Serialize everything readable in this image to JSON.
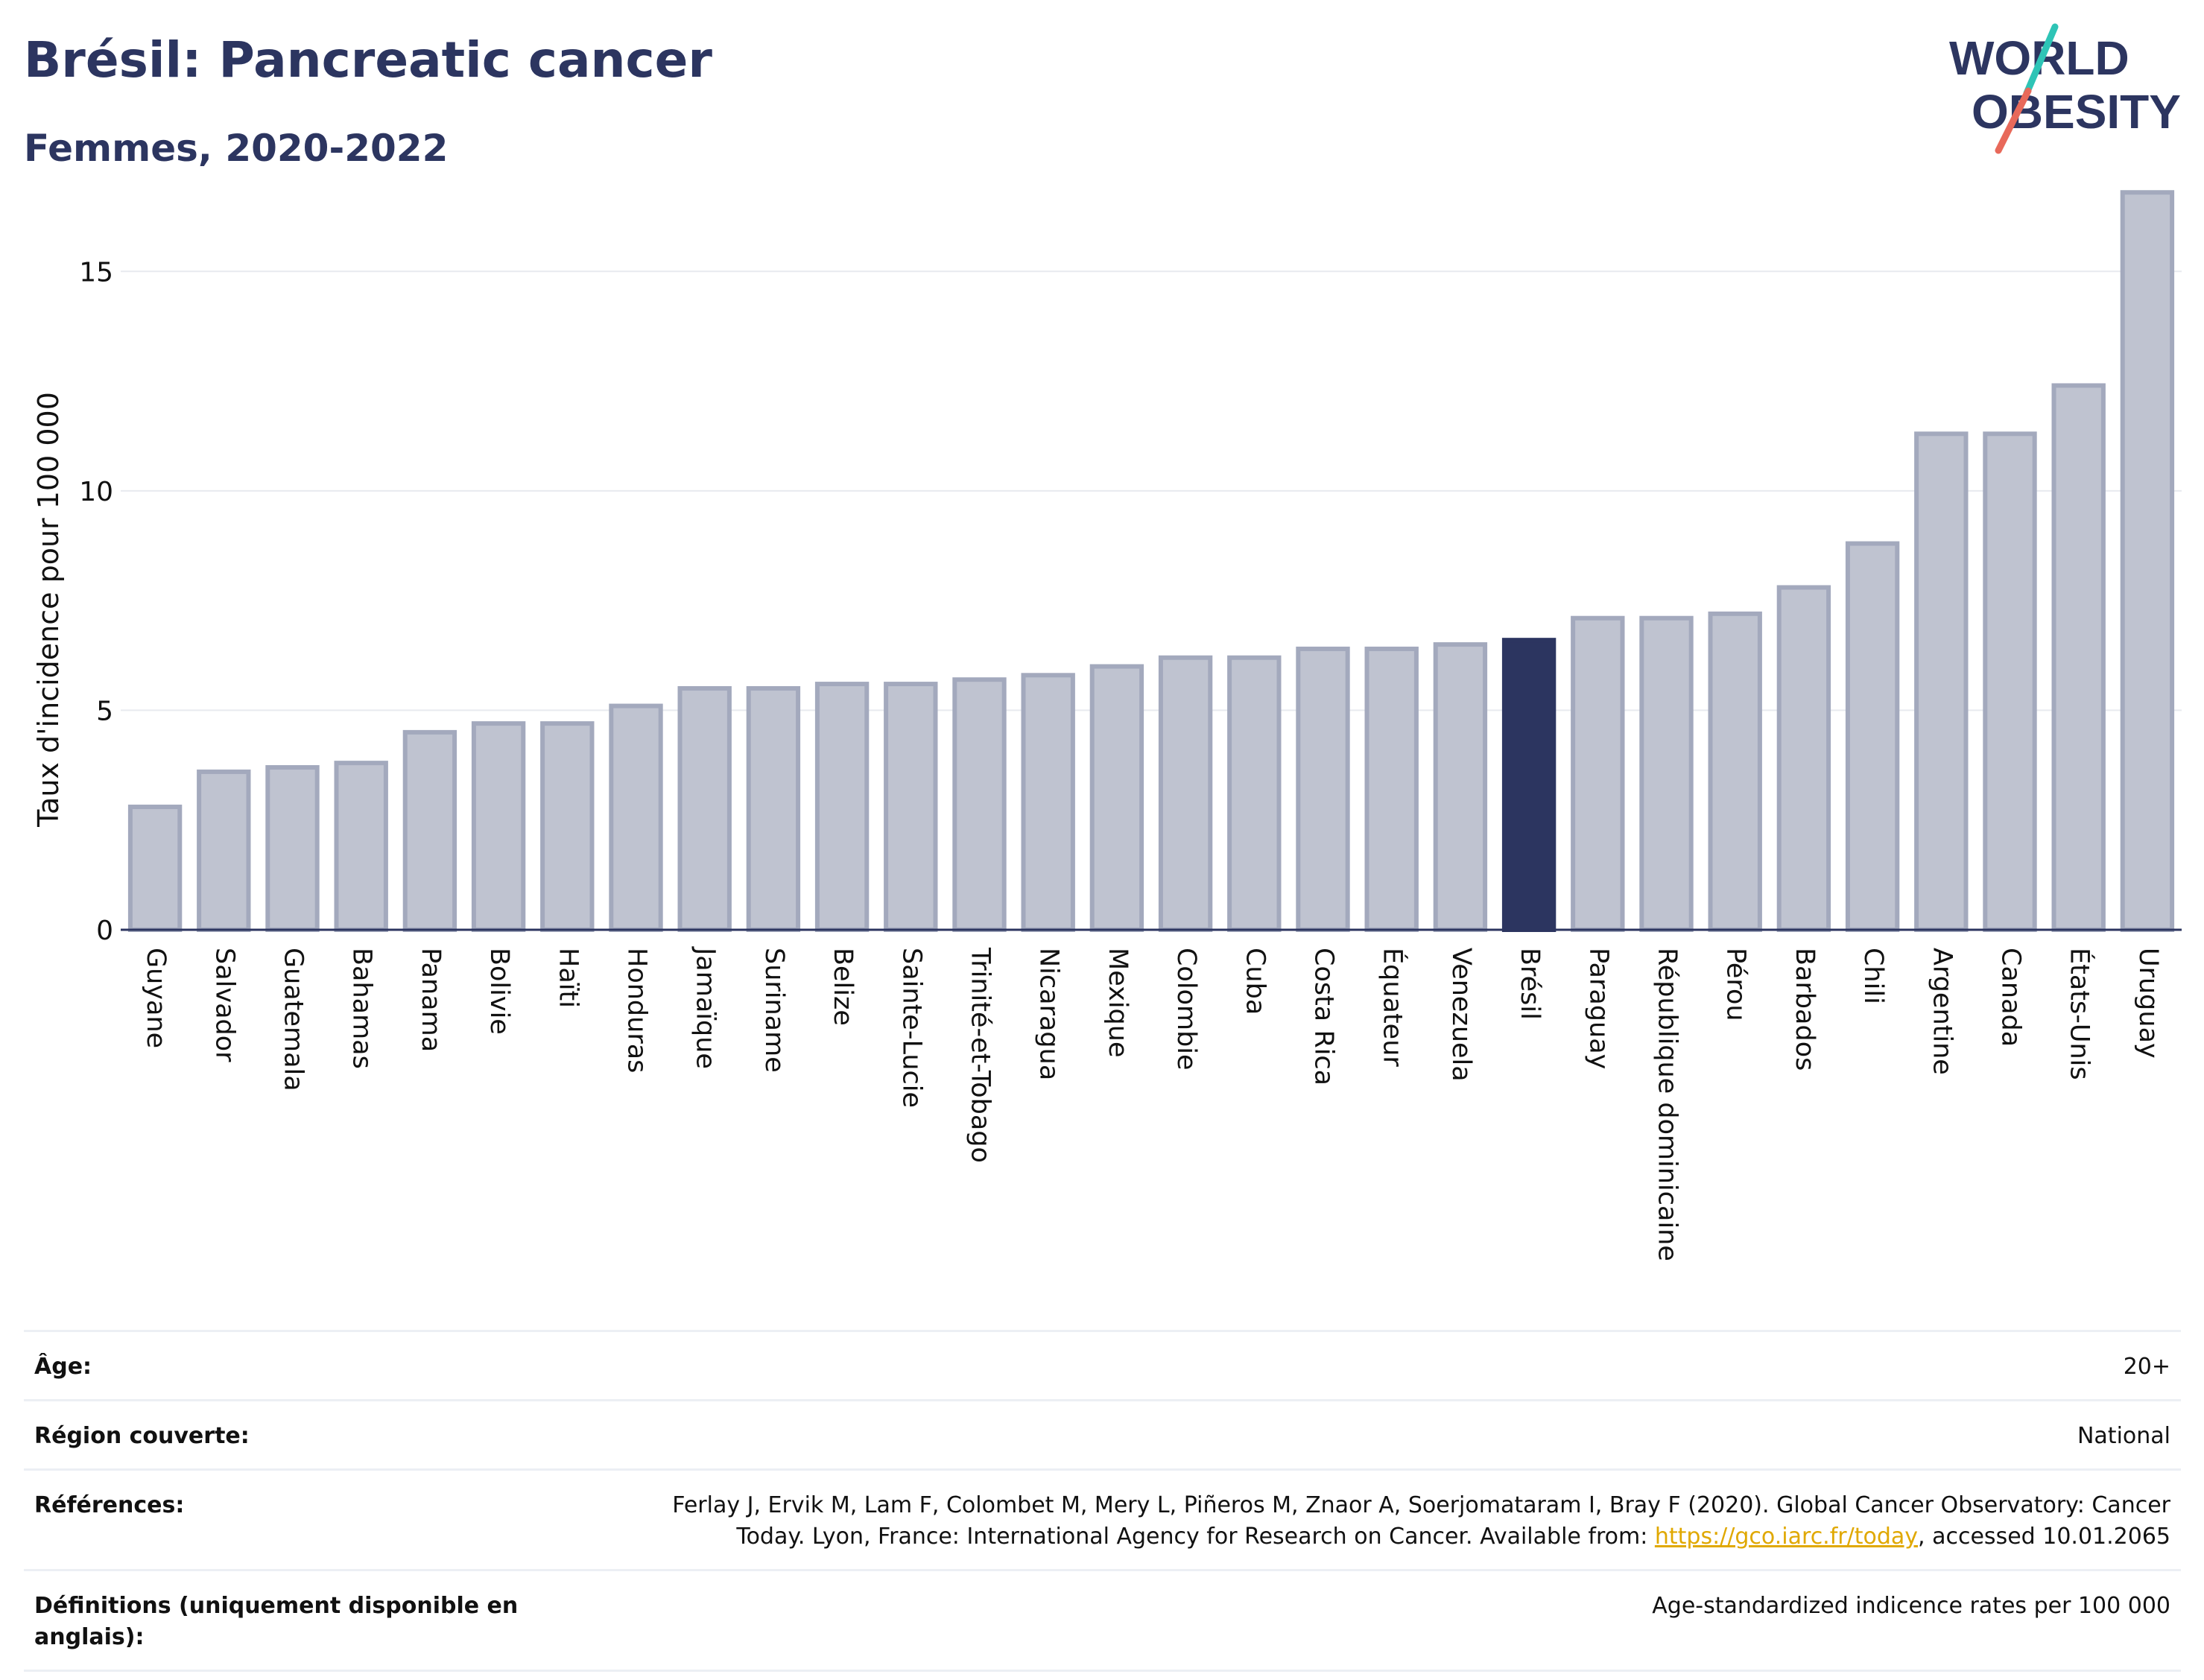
{
  "header": {
    "title": "Brésil: Pancreatic cancer",
    "subtitle": "Femmes, 2020-2022"
  },
  "logo": {
    "line1": "WORLD",
    "line2": "OBESITY"
  },
  "colors": {
    "bar": "#bfc3d0",
    "bar_border": "#a3a9bd",
    "highlight": "#2c3560",
    "title": "#2c3560",
    "logo_slash_top": "#2ec4b6",
    "logo_slash_bottom": "#e8695a",
    "link": "#e0a800"
  },
  "chart_data": {
    "type": "bar",
    "categories": [
      "Guyane",
      "Salvador",
      "Guatemala",
      "Bahamas",
      "Panama",
      "Bolivie",
      "Haïti",
      "Honduras",
      "Jamaïque",
      "Suriname",
      "Belize",
      "Sainte-Lucie",
      "Trinité-et-Tobago",
      "Nicaragua",
      "Mexique",
      "Colombie",
      "Cuba",
      "Costa Rica",
      "Équateur",
      "Venezuela",
      "Brésil",
      "Paraguay",
      "République dominicaine",
      "Pérou",
      "Barbados",
      "Chili",
      "Argentine",
      "Canada",
      "États-Unis",
      "Uruguay"
    ],
    "values": [
      2.8,
      3.6,
      3.7,
      3.8,
      4.5,
      4.7,
      4.7,
      5.1,
      5.5,
      5.5,
      5.6,
      5.6,
      5.7,
      5.8,
      6.0,
      6.2,
      6.2,
      6.4,
      6.4,
      6.5,
      6.6,
      7.1,
      7.1,
      7.2,
      7.8,
      8.8,
      11.3,
      11.3,
      12.4,
      16.8
    ],
    "highlight": "Brésil",
    "ylabel": "Taux d'incidence pour 100 000",
    "yticks": [
      0,
      5,
      10,
      15
    ],
    "ylim": [
      0,
      17.5
    ],
    "grid": true
  },
  "info": [
    {
      "label": "Âge:",
      "value": "20+"
    },
    {
      "label": "Région couverte:",
      "value": "National"
    },
    {
      "label": "Références:",
      "value": "Ferlay J, Ervik M, Lam F, Colombet M, Mery L, Piñeros M, Znaor A, Soerjomataram I, Bray F (2020). Global Cancer Observatory: Cancer Today. Lyon, France: International Agency for Research on Cancer. Available from: ",
      "link": "https://gco.iarc.fr/today",
      "suffix": ", accessed 10.01.2065"
    },
    {
      "label": "Définitions (uniquement disponible en anglais):",
      "value": "Age-standardized indicence rates per 100 000"
    }
  ]
}
